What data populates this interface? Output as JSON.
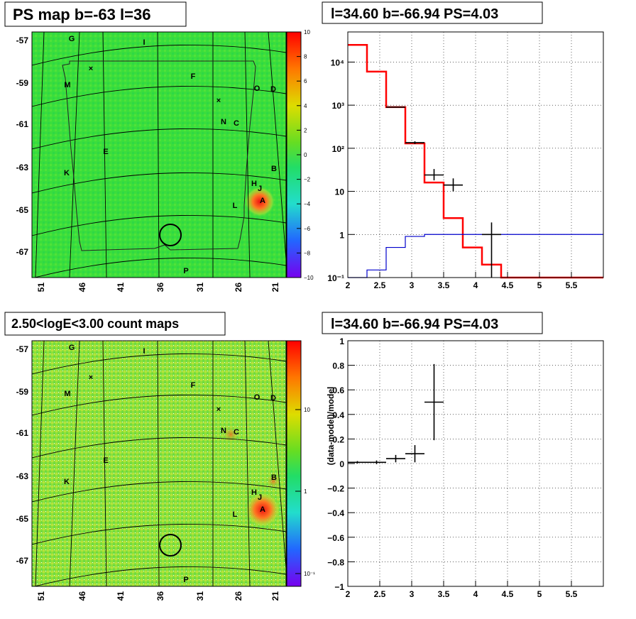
{
  "panels": {
    "ps_map": {
      "title": "PS map b=-63 l=36"
    },
    "spectrum": {
      "title": "l=34.60 b=-66.94 PS=4.03"
    },
    "count_map": {
      "title": "2.50<logE<3.00 count maps"
    },
    "residual": {
      "title": "l=34.60 b=-66.94 PS=4.03"
    }
  },
  "map_axes": {
    "lat_ticks": [
      "-57",
      "-59",
      "-61",
      "-63",
      "-65",
      "-67"
    ],
    "lon_ticks": [
      "51",
      "46",
      "41",
      "36",
      "31",
      "26",
      "21"
    ]
  },
  "sources": [
    "G",
    "I",
    "M",
    "F",
    "O",
    "D",
    "N",
    "C",
    "E",
    "K",
    "B",
    "H",
    "J",
    "A",
    "L",
    "P"
  ],
  "colorbar_ps": {
    "ticks": [
      "10",
      "8",
      "6",
      "4",
      "2",
      "0",
      "−2",
      "−4",
      "−6",
      "−8",
      "−10"
    ]
  },
  "colorbar_counts": {
    "ticks": [
      "10",
      "1",
      "10⁻¹"
    ]
  },
  "colors": {
    "map_green": "#22dd44",
    "hot_red": "#ee1111",
    "model": "#ff0000",
    "background_model": "#0000cc"
  },
  "chart_data": [
    {
      "type": "line",
      "panel": "spectrum",
      "xlim": [
        2,
        6
      ],
      "ylim": [
        0.1,
        50000
      ],
      "log_y": true,
      "grid": true,
      "x_ticks": [
        "2",
        "2.5",
        "3",
        "3.5",
        "4",
        "4.5",
        "5",
        "5.5"
      ],
      "y_ticks": [
        "10⁻¹",
        "1",
        "10",
        "10²",
        "10³",
        "10⁴"
      ],
      "series": [
        {
          "role": "model",
          "color": "#ff0000",
          "style": "step",
          "edges": [
            2.0,
            2.3,
            2.6,
            2.9,
            3.2,
            3.5,
            3.8,
            4.1,
            4.4,
            6.0
          ],
          "values": [
            25000,
            6000,
            900,
            130,
            16,
            2.4,
            0.5,
            0.2,
            0.1
          ]
        },
        {
          "role": "background",
          "color": "#0000cc",
          "style": "step",
          "edges": [
            2.0,
            2.3,
            2.6,
            2.9,
            3.2,
            6.0
          ],
          "values": [
            0.03,
            0.15,
            0.5,
            0.9,
            1.0
          ]
        },
        {
          "role": "data",
          "color": "#000000",
          "style": "errorbar",
          "points": [
            {
              "x": 2.75,
              "y": 900,
              "xerr": 0.15,
              "ylo": 880,
              "yhi": 920
            },
            {
              "x": 3.05,
              "y": 135,
              "xerr": 0.15,
              "ylo": 125,
              "yhi": 145
            },
            {
              "x": 3.35,
              "y": 24,
              "xerr": 0.15,
              "ylo": 18,
              "yhi": 33
            },
            {
              "x": 3.65,
              "y": 14,
              "xerr": 0.15,
              "ylo": 10,
              "yhi": 20
            },
            {
              "x": 4.25,
              "y": 1.0,
              "xerr": 0.15,
              "ylo": 0.1,
              "yhi": 1.9
            }
          ]
        }
      ]
    },
    {
      "type": "scatter",
      "panel": "residual",
      "xlim": [
        2,
        6
      ],
      "ylim": [
        -1,
        1
      ],
      "grid": true,
      "ylabel": "(data-model)/model",
      "x_ticks": [
        "2",
        "2.5",
        "3",
        "3.5",
        "4",
        "4.5",
        "5",
        "5.5"
      ],
      "y_ticks": [
        "1",
        "0.8",
        "0.6",
        "0.4",
        "0.2",
        "0",
        "−0.2",
        "−0.4",
        "−0.6",
        "−0.8",
        "−1"
      ],
      "points": [
        {
          "x": 2.15,
          "y": 0.01,
          "xerr": 0.15,
          "yerr": 0.01
        },
        {
          "x": 2.45,
          "y": 0.01,
          "xerr": 0.15,
          "yerr": 0.015
        },
        {
          "x": 2.75,
          "y": 0.04,
          "xerr": 0.15,
          "yerr": 0.03
        },
        {
          "x": 3.05,
          "y": 0.08,
          "xerr": 0.15,
          "yerr": 0.07
        },
        {
          "x": 3.35,
          "y": 0.5,
          "xerr": 0.15,
          "yerr": 0.31
        }
      ]
    }
  ]
}
